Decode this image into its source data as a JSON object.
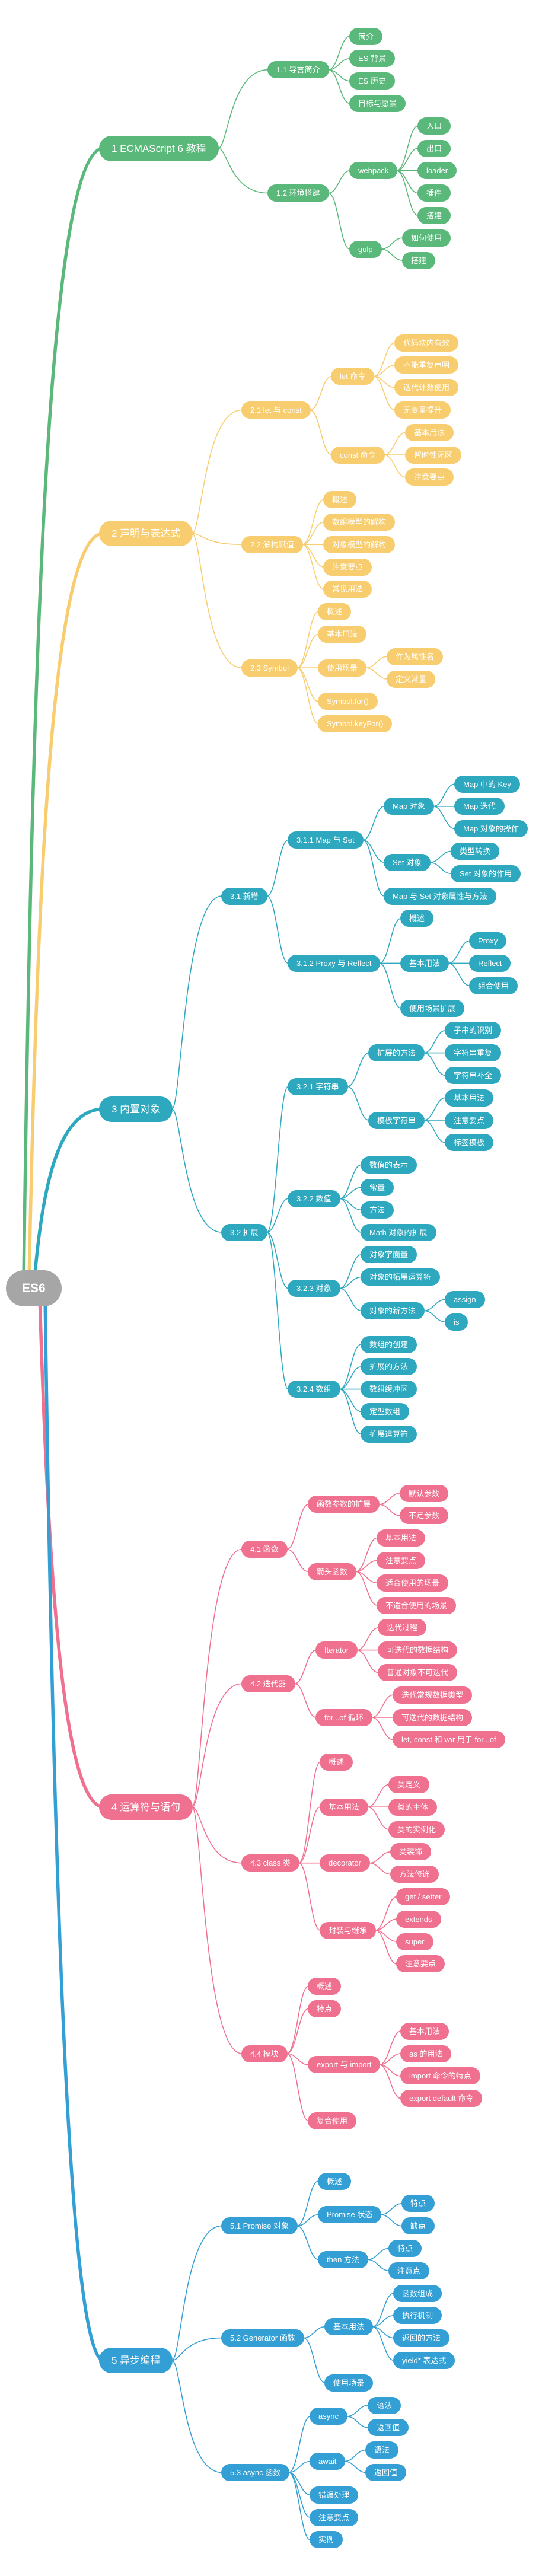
{
  "app": {
    "background": "#ffffff",
    "root_color": "#A6A6A6",
    "branch_colors": [
      "#5BB87B",
      "#F8CD70",
      "#2EA8BF",
      "#F0708F",
      "#339FD5"
    ]
  },
  "tree": {
    "label": "ES6",
    "children": [
      {
        "label": "1 ECMAScript 6 教程",
        "children": [
          {
            "label": "1.1 导言简介",
            "children": [
              {
                "label": "简介"
              },
              {
                "label": "ES 背景"
              },
              {
                "label": "ES 历史"
              },
              {
                "label": "目标与愿景"
              }
            ]
          },
          {
            "label": "1.2 环境搭建",
            "children": [
              {
                "label": "webpack",
                "children": [
                  {
                    "label": "入口"
                  },
                  {
                    "label": "出口"
                  },
                  {
                    "label": "loader"
                  },
                  {
                    "label": "插件"
                  },
                  {
                    "label": "搭建"
                  }
                ]
              },
              {
                "label": "gulp",
                "children": [
                  {
                    "label": "如何使用"
                  },
                  {
                    "label": "搭建"
                  }
                ]
              }
            ]
          }
        ]
      },
      {
        "label": "2 声明与表达式",
        "children": [
          {
            "label": "2.1 let 与 const",
            "children": [
              {
                "label": "let 命令",
                "children": [
                  {
                    "label": "代码块内有效"
                  },
                  {
                    "label": "不能重复声明"
                  },
                  {
                    "label": "迭代计数使用"
                  },
                  {
                    "label": "无变量提升"
                  }
                ]
              },
              {
                "label": "const 命令",
                "children": [
                  {
                    "label": "基本用法"
                  },
                  {
                    "label": "暂时性死区"
                  },
                  {
                    "label": "注意要点"
                  }
                ]
              }
            ]
          },
          {
            "label": "2.2 解构赋值",
            "children": [
              {
                "label": "概述"
              },
              {
                "label": "数组模型的解构"
              },
              {
                "label": "对象模型的解构"
              },
              {
                "label": "注意要点"
              },
              {
                "label": "常见用法"
              }
            ]
          },
          {
            "label": "2.3 Symbol",
            "children": [
              {
                "label": "概述"
              },
              {
                "label": "基本用法"
              },
              {
                "label": "使用场景",
                "children": [
                  {
                    "label": "作为属性名"
                  },
                  {
                    "label": "定义常量"
                  }
                ]
              },
              {
                "label": "Symbol.for()"
              },
              {
                "label": "Symbol.keyFor()"
              }
            ]
          }
        ]
      },
      {
        "label": "3 内置对象",
        "children": [
          {
            "label": "3.1 新增",
            "children": [
              {
                "label": "3.1.1 Map 与 Set",
                "children": [
                  {
                    "label": "Map 对象",
                    "children": [
                      {
                        "label": "Map 中的 Key"
                      },
                      {
                        "label": "Map 迭代"
                      },
                      {
                        "label": "Map 对象的操作"
                      }
                    ]
                  },
                  {
                    "label": "Set 对象",
                    "children": [
                      {
                        "label": "类型转换"
                      },
                      {
                        "label": "Set 对象的作用"
                      }
                    ]
                  },
                  {
                    "label": "Map 与 Set 对象属性与方法"
                  }
                ]
              },
              {
                "label": "3.1.2 Proxy 与 Reflect",
                "children": [
                  {
                    "label": "概述"
                  },
                  {
                    "label": "基本用法",
                    "children": [
                      {
                        "label": "Proxy"
                      },
                      {
                        "label": "Reflect"
                      },
                      {
                        "label": "组合使用"
                      }
                    ]
                  },
                  {
                    "label": "使用场景扩展"
                  }
                ]
              }
            ]
          },
          {
            "label": "3.2 扩展",
            "children": [
              {
                "label": "3.2.1 字符串",
                "children": [
                  {
                    "label": "扩展的方法",
                    "children": [
                      {
                        "label": "子串的识别"
                      },
                      {
                        "label": "字符串重复"
                      },
                      {
                        "label": "字符串补全"
                      }
                    ]
                  },
                  {
                    "label": "模板字符串",
                    "children": [
                      {
                        "label": "基本用法"
                      },
                      {
                        "label": "注意要点"
                      },
                      {
                        "label": "标签模板"
                      }
                    ]
                  }
                ]
              },
              {
                "label": "3.2.2 数值",
                "children": [
                  {
                    "label": "数值的表示"
                  },
                  {
                    "label": "常量"
                  },
                  {
                    "label": "方法"
                  },
                  {
                    "label": "Math 对象的扩展"
                  }
                ]
              },
              {
                "label": "3.2.3 对象",
                "children": [
                  {
                    "label": "对象字面量"
                  },
                  {
                    "label": "对象的拓展运算符"
                  },
                  {
                    "label": "对象的新方法",
                    "children": [
                      {
                        "label": "assign"
                      },
                      {
                        "label": "is"
                      }
                    ]
                  }
                ]
              },
              {
                "label": "3.2.4 数组",
                "children": [
                  {
                    "label": "数组的创建"
                  },
                  {
                    "label": "扩展的方法"
                  },
                  {
                    "label": "数组缓冲区"
                  },
                  {
                    "label": "定型数组"
                  },
                  {
                    "label": "扩展运算符"
                  }
                ]
              }
            ]
          }
        ]
      },
      {
        "label": "4 运算符与语句",
        "children": [
          {
            "label": "4.1 函数",
            "children": [
              {
                "label": "函数参数的扩展",
                "children": [
                  {
                    "label": "默认参数"
                  },
                  {
                    "label": "不定参数"
                  }
                ]
              },
              {
                "label": "箭头函数",
                "children": [
                  {
                    "label": "基本用法"
                  },
                  {
                    "label": "注意要点"
                  },
                  {
                    "label": "适合使用的场景"
                  },
                  {
                    "label": "不适合使用的场景"
                  }
                ]
              }
            ]
          },
          {
            "label": "4.2 迭代器",
            "children": [
              {
                "label": "Iterator",
                "children": [
                  {
                    "label": "迭代过程"
                  },
                  {
                    "label": "可迭代的数据结构"
                  },
                  {
                    "label": "普通对象不可迭代"
                  }
                ]
              },
              {
                "label": "for...of 循环",
                "children": [
                  {
                    "label": "迭代常规数据类型"
                  },
                  {
                    "label": "可迭代的数据结构"
                  },
                  {
                    "label": "let, const 和 var 用于 for...of"
                  }
                ]
              }
            ]
          },
          {
            "label": "4.3 class 类",
            "children": [
              {
                "label": "概述"
              },
              {
                "label": "基本用法",
                "children": [
                  {
                    "label": "类定义"
                  },
                  {
                    "label": "类的主体"
                  },
                  {
                    "label": "类的实例化"
                  }
                ]
              },
              {
                "label": "decorator",
                "children": [
                  {
                    "label": "类装饰"
                  },
                  {
                    "label": "方法修饰"
                  }
                ]
              },
              {
                "label": "封装与继承",
                "children": [
                  {
                    "label": "get / setter"
                  },
                  {
                    "label": "extends"
                  },
                  {
                    "label": "super"
                  },
                  {
                    "label": "注意要点"
                  }
                ]
              }
            ]
          },
          {
            "label": "4.4 模块",
            "children": [
              {
                "label": "概述"
              },
              {
                "label": "特点"
              },
              {
                "label": "export 与 import",
                "children": [
                  {
                    "label": "基本用法"
                  },
                  {
                    "label": "as 的用法"
                  },
                  {
                    "label": "import 命令的特点"
                  },
                  {
                    "label": "export default 命令"
                  }
                ]
              },
              {
                "label": "复合使用"
              }
            ]
          }
        ]
      },
      {
        "label": "5 异步编程",
        "children": [
          {
            "label": "5.1 Promise 对象",
            "children": [
              {
                "label": "概述"
              },
              {
                "label": "Promise 状态",
                "children": [
                  {
                    "label": "特点"
                  },
                  {
                    "label": "缺点"
                  }
                ]
              },
              {
                "label": "then 方法",
                "children": [
                  {
                    "label": "特点"
                  },
                  {
                    "label": "注意点"
                  }
                ]
              }
            ]
          },
          {
            "label": "5.2 Generator 函数",
            "children": [
              {
                "label": "基本用法",
                "children": [
                  {
                    "label": "函数组成"
                  },
                  {
                    "label": "执行机制"
                  },
                  {
                    "label": "返回的方法"
                  },
                  {
                    "label": "yield* 表达式"
                  }
                ]
              },
              {
                "label": "使用场景"
              }
            ]
          },
          {
            "label": "5.3 async 函数",
            "children": [
              {
                "label": "async",
                "children": [
                  {
                    "label": "语法"
                  },
                  {
                    "label": "返回值"
                  }
                ]
              },
              {
                "label": "await",
                "children": [
                  {
                    "label": "语法"
                  },
                  {
                    "label": "返回值"
                  }
                ]
              },
              {
                "label": "错误处理"
              },
              {
                "label": "注意要点"
              },
              {
                "label": "实例"
              }
            ]
          }
        ]
      }
    ]
  }
}
